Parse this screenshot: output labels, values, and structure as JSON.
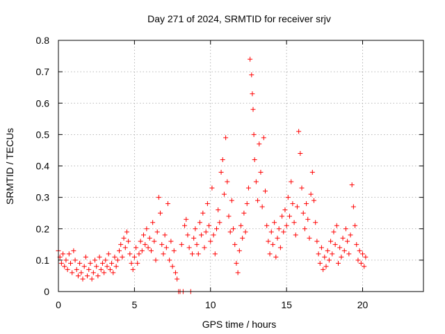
{
  "chart_data": {
    "type": "scatter",
    "title": "Day 271 of 2024, SRMTID for receiver srjv",
    "xlabel": "GPS time / hours",
    "ylabel": "SRMTID / TECUs",
    "xlim": [
      0,
      24
    ],
    "ylim": [
      0,
      0.8
    ],
    "xticks": [
      0,
      5,
      10,
      15,
      20
    ],
    "yticks": [
      0,
      0.1,
      0.2,
      0.3,
      0.4,
      0.5,
      0.6,
      0.7,
      0.8
    ],
    "xtick_labels": [
      "0",
      "5",
      "10",
      "15",
      "20"
    ],
    "ytick_labels": [
      "0",
      "0.1",
      "0.2",
      "0.3",
      "0.4",
      "0.5",
      "0.6",
      "0.7",
      "0.8"
    ],
    "grid": true,
    "marker": "+",
    "color": "#ff0000",
    "series": [
      {
        "name": "srjv",
        "points": [
          [
            0.0,
            0.13
          ],
          [
            0.1,
            0.11
          ],
          [
            0.2,
            0.09
          ],
          [
            0.3,
            0.12
          ],
          [
            0.4,
            0.08
          ],
          [
            0.5,
            0.1
          ],
          [
            0.6,
            0.07
          ],
          [
            0.7,
            0.12
          ],
          [
            0.8,
            0.09
          ],
          [
            0.9,
            0.06
          ],
          [
            1.0,
            0.13
          ],
          [
            1.1,
            0.1
          ],
          [
            1.2,
            0.07
          ],
          [
            1.3,
            0.05
          ],
          [
            1.4,
            0.09
          ],
          [
            1.5,
            0.06
          ],
          [
            1.6,
            0.04
          ],
          [
            1.7,
            0.08
          ],
          [
            1.8,
            0.11
          ],
          [
            1.9,
            0.05
          ],
          [
            2.0,
            0.07
          ],
          [
            2.1,
            0.09
          ],
          [
            2.2,
            0.04
          ],
          [
            2.3,
            0.06
          ],
          [
            2.4,
            0.1
          ],
          [
            2.5,
            0.08
          ],
          [
            2.6,
            0.05
          ],
          [
            2.7,
            0.11
          ],
          [
            2.8,
            0.07
          ],
          [
            2.9,
            0.09
          ],
          [
            3.0,
            0.06
          ],
          [
            3.1,
            0.1
          ],
          [
            3.2,
            0.08
          ],
          [
            3.3,
            0.12
          ],
          [
            3.4,
            0.07
          ],
          [
            3.5,
            0.09
          ],
          [
            3.6,
            0.06
          ],
          [
            3.7,
            0.11
          ],
          [
            3.8,
            0.08
          ],
          [
            3.9,
            0.1
          ],
          [
            4.0,
            0.13
          ],
          [
            4.1,
            0.15
          ],
          [
            4.2,
            0.11
          ],
          [
            4.3,
            0.17
          ],
          [
            4.4,
            0.14
          ],
          [
            4.5,
            0.19
          ],
          [
            4.6,
            0.16
          ],
          [
            4.7,
            0.12
          ],
          [
            4.8,
            0.09
          ],
          [
            4.9,
            0.07
          ],
          [
            5.0,
            0.11
          ],
          [
            5.1,
            0.14
          ],
          [
            5.2,
            0.09
          ],
          [
            5.3,
            0.12
          ],
          [
            5.4,
            0.16
          ],
          [
            5.5,
            0.13
          ],
          [
            5.6,
            0.18
          ],
          [
            5.7,
            0.15
          ],
          [
            5.8,
            0.2
          ],
          [
            5.9,
            0.14
          ],
          [
            6.0,
            0.17
          ],
          [
            6.1,
            0.13
          ],
          [
            6.2,
            0.22
          ],
          [
            6.3,
            0.16
          ],
          [
            6.4,
            0.1
          ],
          [
            6.5,
            0.19
          ],
          [
            6.6,
            0.3
          ],
          [
            6.7,
            0.25
          ],
          [
            6.8,
            0.15
          ],
          [
            6.9,
            0.12
          ],
          [
            7.0,
            0.18
          ],
          [
            7.1,
            0.14
          ],
          [
            7.2,
            0.28
          ],
          [
            7.3,
            0.1
          ],
          [
            7.4,
            0.16
          ],
          [
            7.5,
            0.08
          ],
          [
            7.6,
            0.13
          ],
          [
            7.7,
            0.06
          ],
          [
            7.8,
            0.04
          ],
          [
            7.9,
            0.0
          ],
          [
            8.0,
            0.0
          ],
          [
            8.1,
            0.15
          ],
          [
            8.2,
            0.0
          ],
          [
            8.3,
            0.21
          ],
          [
            8.4,
            0.23
          ],
          [
            8.5,
            0.18
          ],
          [
            8.6,
            0.14
          ],
          [
            8.7,
            0.0
          ],
          [
            8.8,
            0.12
          ],
          [
            8.9,
            0.17
          ],
          [
            9.0,
            0.2
          ],
          [
            9.1,
            0.15
          ],
          [
            9.2,
            0.12
          ],
          [
            9.3,
            0.22
          ],
          [
            9.4,
            0.18
          ],
          [
            9.5,
            0.25
          ],
          [
            9.6,
            0.14
          ],
          [
            9.7,
            0.19
          ],
          [
            9.8,
            0.28
          ],
          [
            9.9,
            0.21
          ],
          [
            10.0,
            0.16
          ],
          [
            10.1,
            0.33
          ],
          [
            10.2,
            0.18
          ],
          [
            10.3,
            0.12
          ],
          [
            10.4,
            0.2
          ],
          [
            10.5,
            0.26
          ],
          [
            10.6,
            0.22
          ],
          [
            10.7,
            0.38
          ],
          [
            10.8,
            0.42
          ],
          [
            10.9,
            0.31
          ],
          [
            11.0,
            0.49
          ],
          [
            11.1,
            0.35
          ],
          [
            11.2,
            0.24
          ],
          [
            11.3,
            0.19
          ],
          [
            11.4,
            0.29
          ],
          [
            11.5,
            0.2
          ],
          [
            11.6,
            0.15
          ],
          [
            11.7,
            0.09
          ],
          [
            11.8,
            0.06
          ],
          [
            11.9,
            0.13
          ],
          [
            12.0,
            0.21
          ],
          [
            12.1,
            0.17
          ],
          [
            12.2,
            0.25
          ],
          [
            12.3,
            0.19
          ],
          [
            12.4,
            0.28
          ],
          [
            12.5,
            0.33
          ],
          [
            12.6,
            0.74
          ],
          [
            12.7,
            0.69
          ],
          [
            12.75,
            0.63
          ],
          [
            12.8,
            0.58
          ],
          [
            12.85,
            0.5
          ],
          [
            12.9,
            0.42
          ],
          [
            13.0,
            0.35
          ],
          [
            13.1,
            0.29
          ],
          [
            13.2,
            0.47
          ],
          [
            13.3,
            0.38
          ],
          [
            13.4,
            0.27
          ],
          [
            13.5,
            0.49
          ],
          [
            13.6,
            0.32
          ],
          [
            13.7,
            0.21
          ],
          [
            13.8,
            0.16
          ],
          [
            13.9,
            0.12
          ],
          [
            14.0,
            0.19
          ],
          [
            14.1,
            0.15
          ],
          [
            14.2,
            0.22
          ],
          [
            14.3,
            0.11
          ],
          [
            14.4,
            0.17
          ],
          [
            14.5,
            0.2
          ],
          [
            14.6,
            0.14
          ],
          [
            14.7,
            0.24
          ],
          [
            14.8,
            0.19
          ],
          [
            14.9,
            0.26
          ],
          [
            15.0,
            0.21
          ],
          [
            15.1,
            0.3
          ],
          [
            15.2,
            0.24
          ],
          [
            15.3,
            0.35
          ],
          [
            15.4,
            0.28
          ],
          [
            15.5,
            0.22
          ],
          [
            15.6,
            0.18
          ],
          [
            15.7,
            0.27
          ],
          [
            15.8,
            0.51
          ],
          [
            15.9,
            0.44
          ],
          [
            16.0,
            0.33
          ],
          [
            16.1,
            0.25
          ],
          [
            16.2,
            0.2
          ],
          [
            16.3,
            0.28
          ],
          [
            16.4,
            0.23
          ],
          [
            16.5,
            0.17
          ],
          [
            16.6,
            0.31
          ],
          [
            16.7,
            0.38
          ],
          [
            16.8,
            0.29
          ],
          [
            16.9,
            0.22
          ],
          [
            17.0,
            0.16
          ],
          [
            17.1,
            0.12
          ],
          [
            17.2,
            0.09
          ],
          [
            17.3,
            0.14
          ],
          [
            17.4,
            0.07
          ],
          [
            17.5,
            0.11
          ],
          [
            17.6,
            0.08
          ],
          [
            17.7,
            0.13
          ],
          [
            17.8,
            0.1
          ],
          [
            17.9,
            0.16
          ],
          [
            18.0,
            0.12
          ],
          [
            18.1,
            0.19
          ],
          [
            18.2,
            0.15
          ],
          [
            18.3,
            0.21
          ],
          [
            18.4,
            0.09
          ],
          [
            18.5,
            0.14
          ],
          [
            18.6,
            0.11
          ],
          [
            18.7,
            0.17
          ],
          [
            18.8,
            0.13
          ],
          [
            18.9,
            0.2
          ],
          [
            19.0,
            0.16
          ],
          [
            19.1,
            0.12
          ],
          [
            19.2,
            0.18
          ],
          [
            19.3,
            0.34
          ],
          [
            19.4,
            0.27
          ],
          [
            19.5,
            0.21
          ],
          [
            19.6,
            0.15
          ],
          [
            19.7,
            0.1
          ],
          [
            19.8,
            0.13
          ],
          [
            19.9,
            0.09
          ],
          [
            20.0,
            0.12
          ],
          [
            20.1,
            0.08
          ],
          [
            20.2,
            0.11
          ]
        ]
      }
    ]
  }
}
